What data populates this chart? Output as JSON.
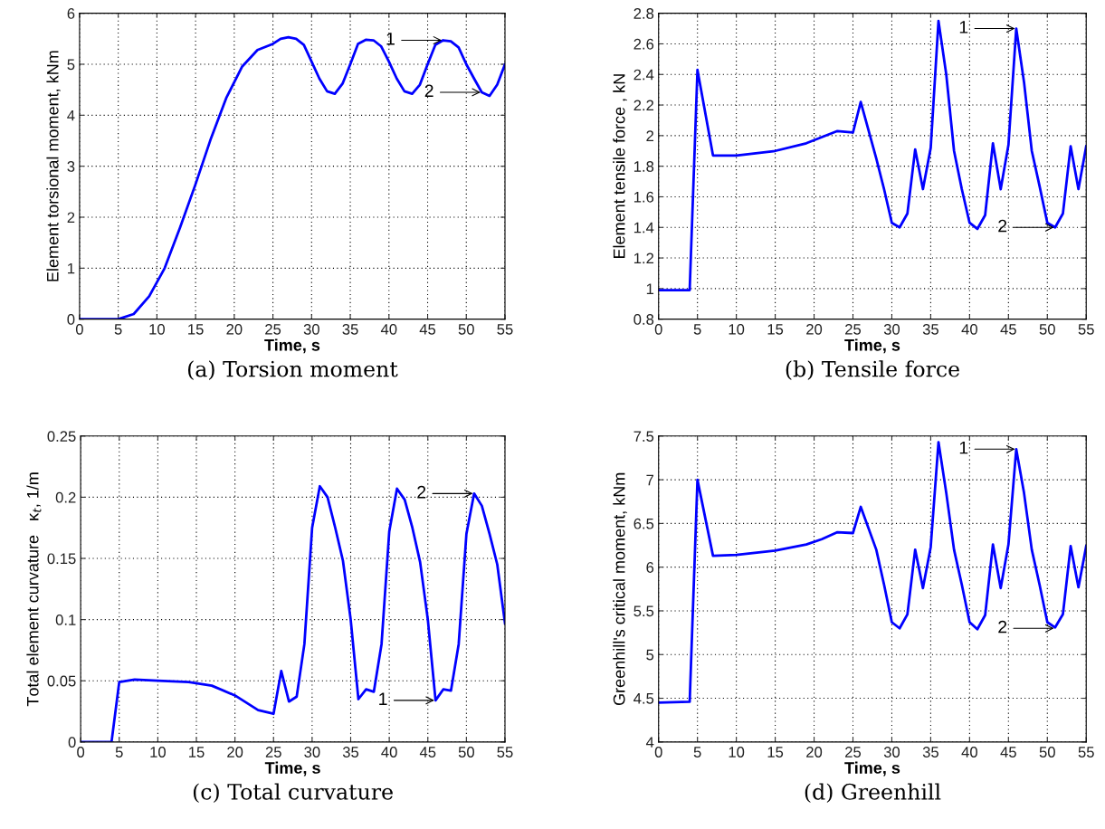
{
  "chart_data": [
    {
      "type": "line",
      "title": "(a) Torsion moment",
      "xlabel": "Time, s",
      "ylabel": "Element torsional moment, kNm",
      "color": "#0000ff",
      "grid": true,
      "x": [
        0,
        5,
        7,
        9,
        11,
        13,
        15,
        17,
        19,
        21,
        23,
        25,
        26,
        27,
        28,
        29,
        30,
        31,
        32,
        33,
        34,
        35,
        36,
        37,
        38,
        39,
        40,
        41,
        42,
        43,
        44,
        45,
        46,
        47,
        48,
        49,
        50,
        51,
        52,
        53,
        54,
        55
      ],
      "values": [
        0,
        0,
        0.1,
        0.45,
        1.0,
        1.8,
        2.65,
        3.55,
        4.35,
        4.95,
        5.28,
        5.4,
        5.5,
        5.53,
        5.5,
        5.38,
        5.05,
        4.72,
        4.47,
        4.42,
        4.62,
        5.0,
        5.4,
        5.48,
        5.47,
        5.35,
        5.05,
        4.72,
        4.47,
        4.42,
        4.6,
        5.0,
        5.38,
        5.47,
        5.45,
        5.33,
        5.0,
        4.72,
        4.45,
        4.38,
        4.6,
        5.0
      ],
      "xlim": [
        0,
        55
      ],
      "xticks": [
        0,
        5,
        10,
        15,
        20,
        25,
        30,
        35,
        40,
        45,
        50,
        55
      ],
      "ylim": [
        0,
        6
      ],
      "yticks": [
        0,
        1,
        2,
        3,
        4,
        5,
        6
      ],
      "annotations": [
        {
          "text": "1",
          "x": 47,
          "y": 5.47
        },
        {
          "text": "2",
          "x": 52,
          "y": 4.45
        }
      ]
    },
    {
      "type": "line",
      "title": "(b) Tensile force",
      "xlabel": "Time, s",
      "ylabel": "Element tensile force , kN",
      "color": "#0000ff",
      "grid": true,
      "x": [
        0,
        4,
        5,
        7,
        10,
        15,
        19,
        21,
        23,
        25,
        26,
        28,
        29,
        30,
        31,
        32,
        33,
        34,
        35,
        36,
        37,
        38,
        39,
        40,
        41,
        42,
        43,
        44,
        45,
        46,
        47,
        48,
        49,
        50,
        51,
        52,
        53,
        54,
        55
      ],
      "values": [
        0.99,
        0.99,
        2.43,
        1.87,
        1.87,
        1.9,
        1.95,
        1.99,
        2.03,
        2.02,
        2.22,
        1.85,
        1.65,
        1.43,
        1.4,
        1.49,
        1.91,
        1.65,
        1.92,
        2.75,
        2.4,
        1.9,
        1.65,
        1.43,
        1.39,
        1.48,
        1.95,
        1.65,
        1.94,
        2.7,
        2.35,
        1.9,
        1.67,
        1.43,
        1.4,
        1.49,
        1.93,
        1.65,
        1.93
      ],
      "xlim": [
        0,
        55
      ],
      "xticks": [
        0,
        5,
        10,
        15,
        20,
        25,
        30,
        35,
        40,
        45,
        50,
        55
      ],
      "ylim": [
        0.8,
        2.8
      ],
      "yticks": [
        0.8,
        1,
        1.2,
        1.4,
        1.6,
        1.8,
        2,
        2.2,
        2.4,
        2.6,
        2.8
      ],
      "annotations": [
        {
          "text": "1",
          "x": 46,
          "y": 2.7
        },
        {
          "text": "2",
          "x": 51,
          "y": 1.4
        }
      ]
    },
    {
      "type": "line",
      "title": "(c) Total curvature",
      "xlabel": "Time, s",
      "ylabel": "Total element curvature   κ$_{t}$, 1/m",
      "color": "#0000ff",
      "grid": true,
      "x": [
        0,
        4,
        5,
        7,
        10,
        14,
        17,
        20,
        23,
        25,
        26,
        27,
        28,
        29,
        30,
        31,
        32,
        33,
        34,
        35,
        36,
        37,
        38,
        39,
        40,
        41,
        42,
        43,
        44,
        45,
        46,
        47,
        48,
        49,
        50,
        51,
        52,
        53,
        54,
        55
      ],
      "values": [
        0,
        0,
        0.049,
        0.051,
        0.05,
        0.049,
        0.046,
        0.038,
        0.026,
        0.023,
        0.058,
        0.033,
        0.037,
        0.08,
        0.175,
        0.209,
        0.2,
        0.175,
        0.148,
        0.1,
        0.035,
        0.043,
        0.041,
        0.08,
        0.172,
        0.207,
        0.198,
        0.175,
        0.147,
        0.1,
        0.034,
        0.043,
        0.042,
        0.08,
        0.17,
        0.203,
        0.193,
        0.17,
        0.145,
        0.097
      ],
      "xlim": [
        0,
        55
      ],
      "xticks": [
        0,
        5,
        10,
        15,
        20,
        25,
        30,
        35,
        40,
        45,
        50,
        55
      ],
      "ylim": [
        0,
        0.25
      ],
      "yticks": [
        0,
        0.05,
        0.1,
        0.15,
        0.2,
        0.25
      ],
      "annotations": [
        {
          "text": "1",
          "x": 46,
          "y": 0.034
        },
        {
          "text": "2",
          "x": 51,
          "y": 0.203
        }
      ]
    },
    {
      "type": "line",
      "title": "(d) Greenhill",
      "xlabel": "Time, s",
      "ylabel": "Greenhill's critical moment, kNm",
      "color": "#0000ff",
      "grid": true,
      "x": [
        0,
        4,
        5,
        7,
        10,
        15,
        19,
        21,
        23,
        25,
        26,
        28,
        29,
        30,
        31,
        32,
        33,
        34,
        35,
        36,
        37,
        38,
        39,
        40,
        41,
        42,
        43,
        44,
        45,
        46,
        47,
        48,
        49,
        50,
        51,
        52,
        53,
        54,
        55
      ],
      "values": [
        4.45,
        4.46,
        7.0,
        6.13,
        6.14,
        6.19,
        6.26,
        6.32,
        6.4,
        6.39,
        6.69,
        6.2,
        5.8,
        5.37,
        5.3,
        5.46,
        6.2,
        5.76,
        6.23,
        7.43,
        6.85,
        6.2,
        5.8,
        5.37,
        5.29,
        5.45,
        6.26,
        5.76,
        6.26,
        7.35,
        6.85,
        6.2,
        5.8,
        5.37,
        5.31,
        5.46,
        6.24,
        5.77,
        6.24
      ],
      "xlim": [
        0,
        55
      ],
      "xticks": [
        0,
        5,
        10,
        15,
        20,
        25,
        30,
        35,
        40,
        45,
        50,
        55
      ],
      "ylim": [
        4,
        7.5
      ],
      "yticks": [
        4,
        4.5,
        5,
        5.5,
        6,
        6.5,
        7,
        7.5
      ],
      "annotations": [
        {
          "text": "1",
          "x": 46,
          "y": 7.35
        },
        {
          "text": "2",
          "x": 51,
          "y": 5.3
        }
      ]
    }
  ]
}
